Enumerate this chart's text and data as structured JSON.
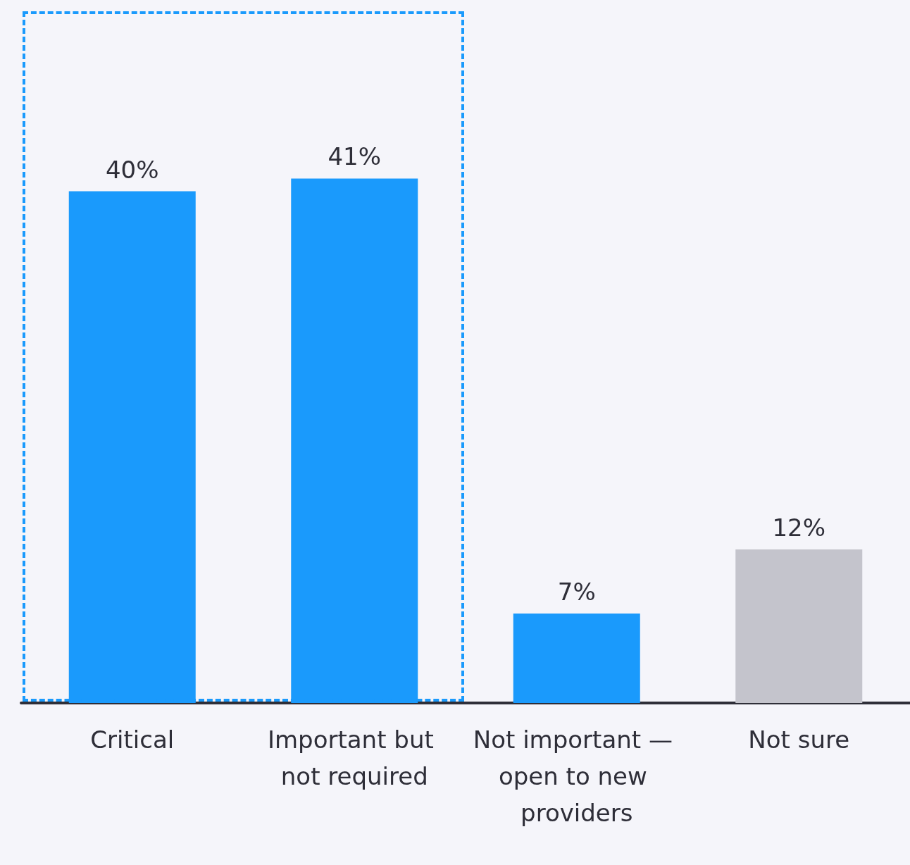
{
  "chart_data": {
    "type": "bar",
    "categories": [
      "Critical",
      "Important but not required",
      "Not important — open to new providers",
      "Not sure"
    ],
    "values": [
      40,
      41,
      7,
      12
    ],
    "colors": [
      "#1a9afc",
      "#1a9afc",
      "#1a9afc",
      "#c4c4cc"
    ],
    "value_labels": [
      "40%",
      "41%",
      "7%",
      "12%"
    ]
  }
}
